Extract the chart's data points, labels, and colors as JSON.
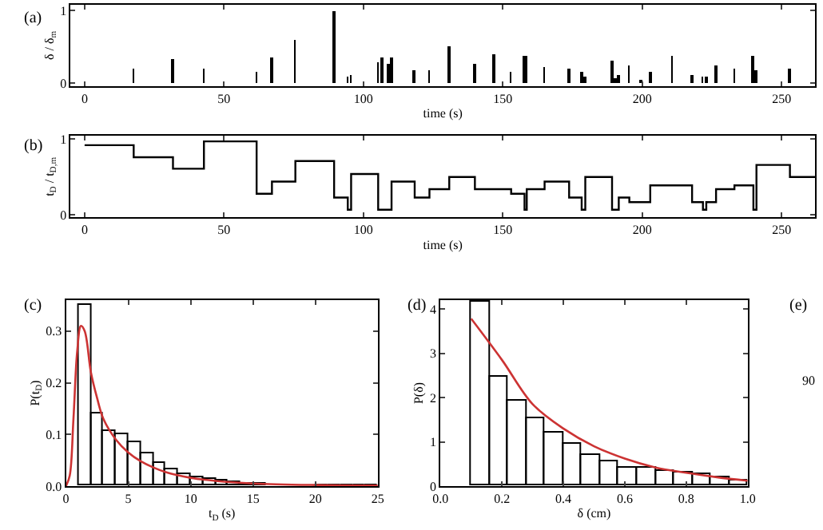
{
  "chart_data": [
    {
      "type": "bar",
      "title": "(a)",
      "xlabel": "time (s)",
      "ylabel": "δ / δ$_{m}$",
      "color": "#000000",
      "x": [
        17.6,
        31.7,
        42.8,
        61.7,
        67.2,
        75.6,
        89.5,
        94.4,
        95.6,
        105.3,
        106.6,
        109.0,
        110.1,
        118.4,
        123.7,
        130.8,
        140.0,
        146.8,
        153.0,
        157.8,
        158.6,
        165.0,
        173.8,
        178.3,
        179.6,
        189.2,
        190.5,
        191.6,
        195.4,
        199.5,
        202.9,
        210.8,
        217.9,
        221.8,
        223.0,
        226.5,
        233.1,
        239.9,
        241.0,
        253.0
      ],
      "values": [
        0.19,
        0.33,
        0.19,
        0.16,
        0.36,
        0.6,
        1.0,
        0.1,
        0.12,
        0.28,
        0.36,
        0.26,
        0.35,
        0.17,
        0.17,
        0.5,
        0.27,
        0.4,
        0.15,
        0.37,
        0.37,
        0.22,
        0.21,
        0.16,
        0.09,
        0.3,
        0.07,
        0.12,
        0.24,
        0.05,
        0.16,
        0.38,
        0.12,
        0.08,
        0.08,
        0.24,
        0.2,
        0.37,
        0.18,
        0.19
      ],
      "xlim": [
        -5,
        262
      ],
      "ylim": [
        -0.04,
        1.08
      ],
      "xticks": [
        0,
        50,
        100,
        150,
        200,
        250
      ],
      "yticks": [
        0,
        1
      ]
    },
    {
      "type": "step",
      "title": "(b)",
      "xlabel": "time (s)",
      "ylabel": "t$_{D}$ / t$_{D,m}$",
      "color": "#000000",
      "x": [
        0,
        17.6,
        31.7,
        42.8,
        61.7,
        67.2,
        75.6,
        89.5,
        94.4,
        95.6,
        105.3,
        110.1,
        118.4,
        123.7,
        130.8,
        140.0,
        153.0,
        157.8,
        158.6,
        165.0,
        173.8,
        178.3,
        179.6,
        189.2,
        191.6,
        195.4,
        202.9,
        217.9,
        221.8,
        223.0,
        226.5,
        233.1,
        239.9,
        241.0,
        253.0,
        262
      ],
      "values": [
        0.92,
        0.76,
        0.61,
        0.97,
        0.28,
        0.44,
        0.71,
        0.23,
        0.07,
        0.54,
        0.07,
        0.44,
        0.23,
        0.34,
        0.5,
        0.34,
        0.28,
        0.07,
        0.34,
        0.44,
        0.23,
        0.07,
        0.5,
        0.07,
        0.23,
        0.17,
        0.39,
        0.17,
        0.07,
        0.17,
        0.34,
        0.39,
        0.07,
        0.66,
        0.5,
        0.5
      ],
      "xlim": [
        -5,
        262
      ],
      "ylim": [
        -0.03,
        1.04
      ],
      "xticks": [
        0,
        50,
        100,
        150,
        200,
        250
      ],
      "yticks": [
        0,
        1
      ]
    },
    {
      "type": "histogram",
      "title": "(c)",
      "xlabel": "t$_{D}$ (s)",
      "ylabel": "P(t$_{D}$)",
      "color": "#000000",
      "bins": [
        1,
        2,
        3,
        4,
        5,
        6,
        7,
        8,
        9,
        10,
        11,
        12,
        13,
        14,
        15,
        16,
        17,
        18,
        19,
        20,
        21,
        22,
        23,
        24,
        25
      ],
      "values": [
        0.35,
        0.14,
        0.107,
        0.1,
        0.085,
        0.063,
        0.045,
        0.033,
        0.023,
        0.017,
        0.013,
        0.01,
        0.008,
        0.006,
        0.004,
        null,
        0.002,
        null,
        null,
        0.001,
        0,
        0,
        0,
        0
      ],
      "series": [
        {
          "type": "line",
          "color": "#cc3333",
          "x": [
            0,
            0.3,
            0.6,
            0.9,
            1.2,
            1.5,
            2,
            2.5,
            3,
            4,
            5,
            6,
            7,
            8,
            10,
            12,
            15,
            20,
            25
          ],
          "values": [
            0,
            0.02,
            0.13,
            0.26,
            0.31,
            0.3,
            0.22,
            0.17,
            0.13,
            0.09,
            0.065,
            0.048,
            0.036,
            0.027,
            0.016,
            0.01,
            0.005,
            0.002,
            0.001
          ]
        }
      ],
      "xlim": [
        0,
        25
      ],
      "ylim": [
        0,
        0.36
      ],
      "xticks": [
        0,
        5,
        10,
        15,
        20,
        25
      ],
      "yticks": [
        {
          "value": 0,
          "label": "0.0"
        },
        0.1,
        0.2,
        0.3
      ]
    },
    {
      "type": "histogram",
      "title": "(d)",
      "xlabel": "δ (cm)",
      "ylabel": "P(δ)",
      "color": "#000000",
      "bins": [
        0.1,
        0.16,
        0.22,
        0.28,
        0.34,
        0.4,
        0.46,
        0.52,
        0.58,
        0.64,
        0.7,
        0.76,
        0.82,
        0.88,
        0.94,
        1.0
      ],
      "values": [
        4.15,
        2.48,
        1.92,
        1.53,
        1.22,
        0.94,
        0.69,
        0.56,
        0.41,
        0.41,
        0.36,
        0.32,
        0.27,
        0.21,
        0.14
      ],
      "series": [
        {
          "type": "line",
          "color": "#cc3333",
          "x": [
            0.1,
            0.2,
            0.3,
            0.4,
            0.5,
            0.6,
            0.7,
            0.8,
            0.9,
            1.0
          ],
          "values": [
            3.78,
            2.85,
            1.85,
            1.3,
            0.9,
            0.62,
            0.42,
            0.3,
            0.2,
            0.12
          ]
        }
      ],
      "xlim": [
        0,
        1
      ],
      "ylim": [
        0,
        4.2
      ],
      "xticks": [
        {
          "value": 0,
          "label": "0.0"
        },
        0.2,
        0.4,
        0.6,
        0.8,
        {
          "value": 1,
          "label": "1.0"
        }
      ],
      "yticks": [
        0,
        1,
        2,
        3,
        4
      ]
    },
    {
      "type": "other",
      "title": "(e)",
      "annotations": [
        "90"
      ]
    }
  ]
}
